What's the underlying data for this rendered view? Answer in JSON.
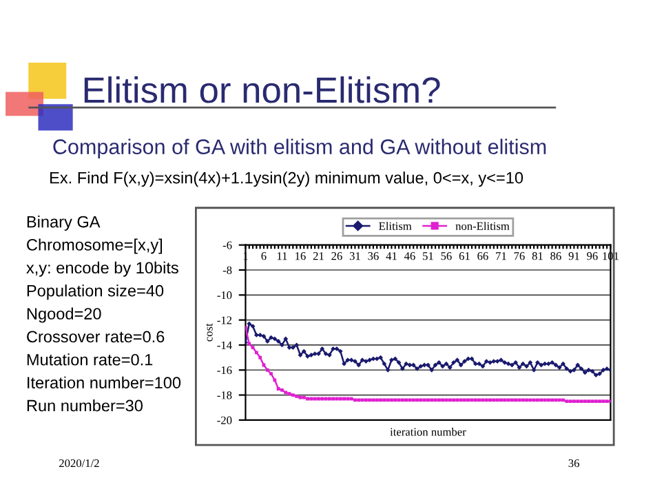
{
  "chart_data": {
    "type": "line",
    "title": "Elitism or non-Elitism?",
    "subtitle": "Comparison of GA with elitism and GA without elitism",
    "annotations": [
      "Ex. Find F(x,y)=xsin(4x)+1.1ysin(2y) minimum value, 0<=x, y<=10",
      "Binary GA",
      "Chromosome=[x,y]",
      "x,y: encode by 10bits",
      "Population size=40",
      "Ngood=20",
      "Crossover rate=0.6",
      "Mutation rate=0.1",
      "Iteration number=100",
      "Run number=30",
      "2020/1/2",
      "36"
    ],
    "xlabel": "iteration number",
    "ylabel": "cost",
    "categories": [
      "1",
      null,
      null,
      null,
      null,
      "6",
      null,
      null,
      null,
      null,
      "11",
      null,
      null,
      null,
      null,
      "16",
      null,
      null,
      null,
      null,
      "21",
      null,
      null,
      null,
      null,
      "26",
      null,
      null,
      null,
      null,
      "31",
      null,
      null,
      null,
      null,
      "36",
      null,
      null,
      null,
      null,
      "41",
      null,
      null,
      null,
      null,
      "46",
      null,
      null,
      null,
      null,
      "51",
      null,
      null,
      null,
      null,
      "56",
      null,
      null,
      null,
      null,
      "61",
      null,
      null,
      null,
      null,
      "66",
      null,
      null,
      null,
      null,
      "71",
      null,
      null,
      null,
      null,
      "76",
      null,
      null,
      null,
      null,
      "81",
      null,
      null,
      null,
      null,
      "86",
      null,
      null,
      null,
      null,
      "91",
      null,
      null,
      null,
      null,
      "96",
      null,
      null,
      null,
      null,
      "101"
    ],
    "series": [
      {
        "name": "Elitism",
        "color": "#1a1a6e",
        "marker": "diamond",
        "values": [
          -13.8,
          -12.3,
          -12.5,
          -13.2,
          -13.2,
          -13.3,
          -13.7,
          -13.4,
          -13.5,
          -13.7,
          -14.0,
          -13.5,
          -14.2,
          -14.2,
          -14.0,
          -14.8,
          -14.5,
          -14.9,
          -14.8,
          -14.7,
          -14.7,
          -14.3,
          -14.7,
          -14.8,
          -14.3,
          -14.3,
          -14.5,
          -15.5,
          -15.2,
          -15.2,
          -15.3,
          -15.6,
          -15.2,
          -15.3,
          -15.2,
          -15.1,
          -15.1,
          -15.0,
          -15.5,
          -16.0,
          -15.2,
          -15.1,
          -15.4,
          -15.9,
          -15.5,
          -15.6,
          -15.6,
          -15.9,
          -15.7,
          -15.6,
          -15.6,
          -16.0,
          -15.6,
          -15.4,
          -15.7,
          -15.5,
          -15.8,
          -15.4,
          -15.2,
          -15.6,
          -15.3,
          -15.1,
          -15.1,
          -15.5,
          -15.5,
          -15.7,
          -15.3,
          -15.4,
          -15.3,
          -15.3,
          -15.2,
          -15.4,
          -15.5,
          -15.6,
          -15.4,
          -15.8,
          -15.5,
          -15.7,
          -15.4,
          -16.0,
          -15.4,
          -15.6,
          -15.5,
          -15.5,
          -15.4,
          -15.6,
          -15.8,
          -15.5,
          -15.9,
          -16.1,
          -16.0,
          -15.6,
          -15.9,
          -16.2,
          -16.0,
          -16.1,
          -16.4,
          -16.3,
          -16.0,
          -15.9,
          -16.0
        ]
      },
      {
        "name": "non-Elitism",
        "color": "#e020d0",
        "marker": "square",
        "values": [
          -12.6,
          -13.9,
          -14.2,
          -14.6,
          -15.0,
          -15.6,
          -16.0,
          -16.3,
          -16.8,
          -17.5,
          -17.6,
          -17.8,
          -17.9,
          -18.0,
          -18.1,
          -18.2,
          -18.2,
          -18.3,
          -18.3,
          -18.3,
          -18.3,
          -18.3,
          -18.3,
          -18.3,
          -18.3,
          -18.3,
          -18.3,
          -18.3,
          -18.3,
          -18.3,
          -18.4,
          -18.4,
          -18.4,
          -18.4,
          -18.4,
          -18.4,
          -18.4,
          -18.4,
          -18.4,
          -18.4,
          -18.4,
          -18.4,
          -18.4,
          -18.4,
          -18.4,
          -18.4,
          -18.4,
          -18.4,
          -18.4,
          -18.4,
          -18.4,
          -18.4,
          -18.4,
          -18.4,
          -18.4,
          -18.4,
          -18.4,
          -18.4,
          -18.4,
          -18.4,
          -18.4,
          -18.4,
          -18.4,
          -18.4,
          -18.4,
          -18.4,
          -18.4,
          -18.4,
          -18.4,
          -18.4,
          -18.4,
          -18.4,
          -18.4,
          -18.4,
          -18.4,
          -18.4,
          -18.4,
          -18.4,
          -18.4,
          -18.4,
          -18.4,
          -18.4,
          -18.4,
          -18.4,
          -18.4,
          -18.4,
          -18.4,
          -18.4,
          -18.5,
          -18.5,
          -18.5,
          -18.5,
          -18.5,
          -18.5,
          -18.5,
          -18.5,
          -18.5,
          -18.5,
          -18.5,
          -18.5,
          -18.5
        ]
      }
    ],
    "ylim": [
      -20,
      -6
    ],
    "yticks": [
      -6,
      -8,
      -10,
      -12,
      -14,
      -16,
      -18,
      -20
    ],
    "grid": "y",
    "legend": "top"
  }
}
